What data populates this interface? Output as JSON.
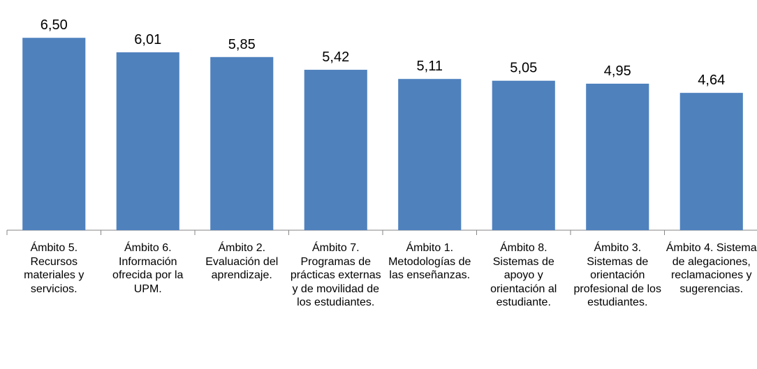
{
  "chart_data": {
    "type": "bar",
    "categories": [
      "Ámbito 5. Recursos materiales y servicios.",
      "Ámbito 6. Información ofrecida por la UPM.",
      "Ámbito 2. Evaluación del aprendizaje.",
      "Ámbito 7. Programas de prácticas externas y de movilidad de los estudiantes.",
      "Ámbito 1. Metodologías de las enseñanzas.",
      "Ámbito 8. Sistemas de apoyo y orientación al estudiante.",
      "Ámbito 3. Sistemas de orientación profesional de los estudiantes.",
      "Ámbito 4. Sistema de alegaciones, reclamaciones y sugerencias."
    ],
    "values": [
      6.5,
      6.01,
      5.85,
      5.42,
      5.11,
      5.05,
      4.95,
      4.64
    ],
    "value_labels": [
      "6,50",
      "6,01",
      "5,85",
      "5,42",
      "5,11",
      "5,05",
      "4,95",
      "4,64"
    ],
    "color": "#4f81bd",
    "ylim": [
      0,
      7
    ]
  }
}
